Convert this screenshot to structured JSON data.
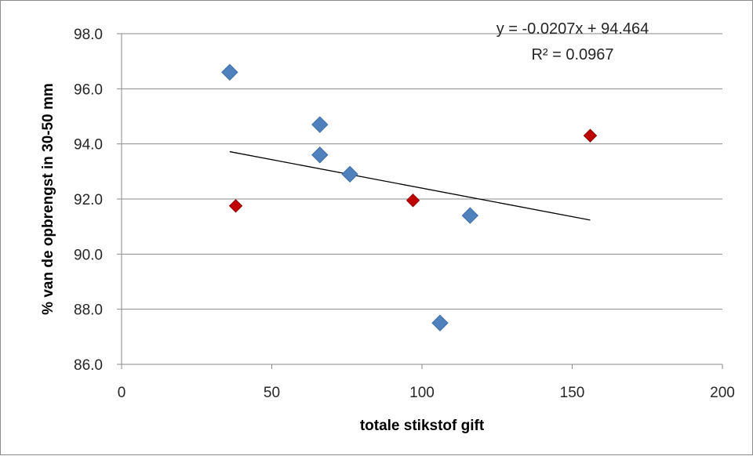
{
  "chart_data": {
    "type": "scatter",
    "xlabel": "totale stikstof gift",
    "ylabel": "% van de opbrengst in 30-50 mm",
    "xlim": [
      0,
      200
    ],
    "ylim": [
      86.0,
      98.0
    ],
    "x_ticks": [
      0,
      50,
      100,
      150,
      200
    ],
    "x_tick_labels": [
      "0",
      "50",
      "100",
      "150",
      "200"
    ],
    "y_ticks": [
      86,
      88,
      90,
      92,
      94,
      96,
      98
    ],
    "y_tick_labels": [
      "86.0",
      "88.0",
      "90.0",
      "92.0",
      "94.0",
      "96.0",
      "98.0"
    ],
    "grid": "horizontal",
    "series": [
      {
        "color": "#4f81bd",
        "marker": "diamond",
        "points": [
          {
            "x": 36,
            "y": 96.6
          },
          {
            "x": 66,
            "y": 94.7
          },
          {
            "x": 66,
            "y": 93.6
          },
          {
            "x": 76,
            "y": 92.9
          },
          {
            "x": 116,
            "y": 91.4
          },
          {
            "x": 106,
            "y": 87.5
          }
        ]
      },
      {
        "color": "#c00000",
        "marker": "diamond",
        "points": [
          {
            "x": 38,
            "y": 91.75
          },
          {
            "x": 97,
            "y": 91.95
          },
          {
            "x": 156,
            "y": 94.3
          }
        ]
      }
    ],
    "trendline": {
      "type": "linear",
      "slope": -0.0207,
      "intercept": 94.464,
      "x_range": [
        36,
        156
      ],
      "color": "#000000"
    },
    "annotations": {
      "equation": "y = -0.0207x + 94.464",
      "r_squared": "R² = 0.0967"
    }
  }
}
